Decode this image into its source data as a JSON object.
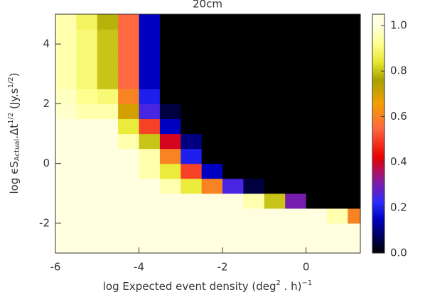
{
  "chart_data": {
    "type": "heatmap",
    "title": "20cm",
    "xlabel": [
      "log Expected event density (deg",
      "2",
      " . h)",
      "−1"
    ],
    "ylabel": [
      "log ϵS",
      "Actual",
      ".Δt",
      "1/2",
      " (Jy.s",
      "1/2",
      ")"
    ],
    "xlim": [
      -6,
      1.3
    ],
    "ylim": [
      -3,
      5
    ],
    "xticks": [
      -6,
      -4,
      -2,
      0
    ],
    "yticks": [
      -2,
      0,
      2,
      4
    ],
    "xbins": [
      -6,
      -5.5,
      -5,
      -4.5,
      -4,
      -3.5,
      -3,
      -2.5,
      -2,
      -1.5,
      -1,
      -0.5,
      0,
      0.5,
      1,
      1.3
    ],
    "ybins": [
      -3,
      -2.5,
      -2,
      -1.5,
      -1,
      -0.5,
      0,
      0.5,
      1,
      1.5,
      2,
      2.5,
      3,
      3.5,
      4,
      4.5,
      5
    ],
    "z": [
      [
        1,
        1,
        1,
        1,
        1,
        1,
        1,
        1,
        1,
        1,
        1,
        1,
        1,
        1,
        1
      ],
      [
        1,
        1,
        1,
        1,
        1,
        1,
        1,
        1,
        1,
        1,
        1,
        1,
        1,
        1,
        1
      ],
      [
        1,
        1,
        1,
        1,
        1,
        1,
        1,
        1,
        1,
        1,
        1,
        1,
        1,
        0.95,
        0.6
      ],
      [
        1,
        1,
        1,
        1,
        1,
        1,
        1,
        1,
        1,
        0.95,
        0.8,
        0.3,
        0,
        0,
        0
      ],
      [
        1,
        1,
        1,
        1,
        1,
        0.95,
        0.85,
        0.6,
        0.25,
        0.05,
        0,
        0,
        0,
        0,
        0
      ],
      [
        1,
        1,
        1,
        1,
        0.95,
        0.85,
        0.5,
        0.15,
        0,
        0,
        0,
        0,
        0,
        0,
        0
      ],
      [
        1,
        1,
        1,
        1,
        0.95,
        0.6,
        0.2,
        0,
        0,
        0,
        0,
        0,
        0,
        0,
        0
      ],
      [
        1,
        1,
        1,
        0.95,
        0.8,
        0.4,
        0.1,
        0,
        0,
        0,
        0,
        0,
        0,
        0,
        0
      ],
      [
        1,
        1,
        1,
        0.85,
        0.5,
        0.15,
        0,
        0,
        0,
        0,
        0,
        0,
        0,
        0,
        0
      ],
      [
        0.98,
        0.95,
        0.95,
        0.7,
        0.25,
        0.05,
        0,
        0,
        0,
        0,
        0,
        0,
        0,
        0,
        0
      ],
      [
        0.97,
        0.92,
        0.9,
        0.6,
        0.2,
        0,
        0,
        0,
        0,
        0,
        0,
        0,
        0,
        0,
        0
      ],
      [
        0.95,
        0.9,
        0.8,
        0.55,
        0.15,
        0,
        0,
        0,
        0,
        0,
        0,
        0,
        0,
        0,
        0
      ],
      [
        0.95,
        0.9,
        0.8,
        0.55,
        0.15,
        0,
        0,
        0,
        0,
        0,
        0,
        0,
        0,
        0,
        0
      ],
      [
        0.95,
        0.9,
        0.8,
        0.55,
        0.15,
        0,
        0,
        0,
        0,
        0,
        0,
        0,
        0,
        0,
        0
      ],
      [
        0.95,
        0.9,
        0.8,
        0.55,
        0.15,
        0,
        0,
        0,
        0,
        0,
        0,
        0,
        0,
        0,
        0
      ],
      [
        0.95,
        0.88,
        0.78,
        0.55,
        0.15,
        0,
        0,
        0,
        0,
        0,
        0,
        0,
        0,
        0,
        0
      ]
    ],
    "colormap": [
      [
        0,
        "#000000"
      ],
      [
        0.15,
        "#0000c0"
      ],
      [
        0.22,
        "#2a2aff"
      ],
      [
        0.32,
        "#8a1a9a"
      ],
      [
        0.42,
        "#e80000"
      ],
      [
        0.55,
        "#ff6a40"
      ],
      [
        0.66,
        "#f0a000"
      ],
      [
        0.76,
        "#a8a000"
      ],
      [
        0.84,
        "#e8e830"
      ],
      [
        0.92,
        "#ffff90"
      ],
      [
        1,
        "#ffffe0"
      ]
    ],
    "zlim": [
      0,
      1.05
    ],
    "zticks": [
      {
        "value": 0,
        "label": "0.0"
      },
      {
        "value": 0.2,
        "label": "0.2"
      },
      {
        "value": 0.4,
        "label": "0.4"
      },
      {
        "value": 0.6,
        "label": "0.6"
      },
      {
        "value": 0.8,
        "label": "0.8"
      },
      {
        "value": 1,
        "label": "1.0"
      }
    ]
  }
}
